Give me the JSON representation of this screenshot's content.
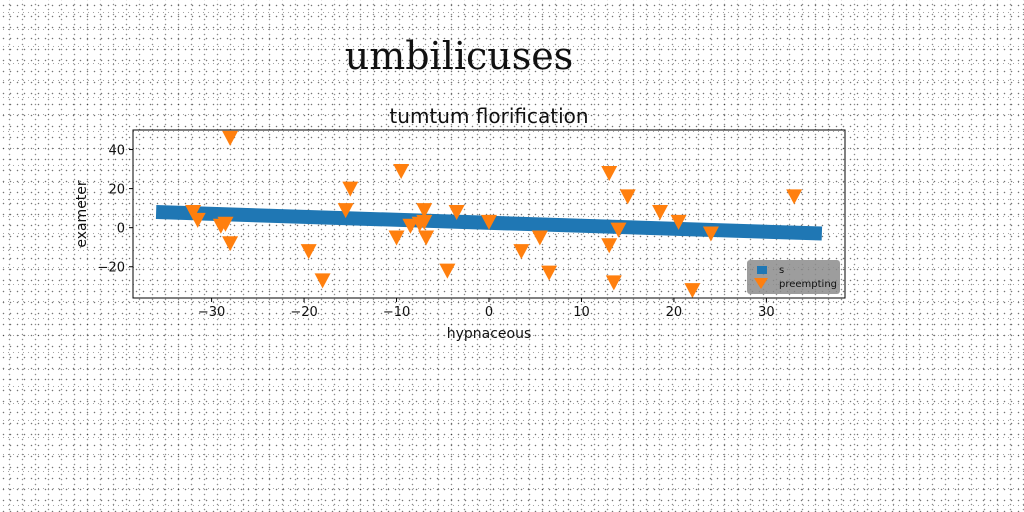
{
  "suptitle": "umbilicuses",
  "chart_data": {
    "type": "scatter",
    "title": "tumtum florification",
    "xlabel": "hypnaceous",
    "ylabel": "exameter",
    "xlim": [
      -38.5,
      38.5
    ],
    "ylim": [
      -36,
      50
    ],
    "xticks": [
      -30,
      -20,
      -10,
      0,
      10,
      20,
      30
    ],
    "yticks": [
      -20,
      0,
      20,
      40
    ],
    "xtick_labels": [
      "−30",
      "−20",
      "−10",
      "0",
      "10",
      "20",
      "30"
    ],
    "ytick_labels": [
      "−20",
      "0",
      "20",
      "40"
    ],
    "legend_position": "lower-right",
    "series": [
      {
        "name": "s",
        "kind": "line",
        "color": "#1f77b4",
        "x": [
          -36,
          36
        ],
        "y": [
          8,
          -3
        ]
      },
      {
        "name": "preempting",
        "kind": "markers",
        "marker": "triangle-down",
        "color": "#ff7f0e",
        "x": [
          -28,
          -32,
          -31.5,
          -29,
          -28.5,
          -28,
          -19.5,
          -18,
          -15,
          -15.5,
          -9.5,
          -10,
          -8.5,
          -7.5,
          -7,
          -7,
          -6.8,
          -4.5,
          -3.5,
          0,
          3.5,
          5.5,
          6.5,
          13,
          13,
          13.5,
          14,
          15,
          18.5,
          20.5,
          22,
          24,
          33
        ],
        "y": [
          46,
          8,
          4,
          1,
          2,
          -8,
          -12,
          -27,
          20,
          9,
          29,
          -5,
          1,
          2,
          9,
          3,
          -5,
          -22,
          8,
          3,
          -12,
          -5,
          -23,
          28,
          -9,
          -28,
          -1,
          16,
          8,
          3,
          -32,
          -3,
          16
        ]
      }
    ]
  }
}
